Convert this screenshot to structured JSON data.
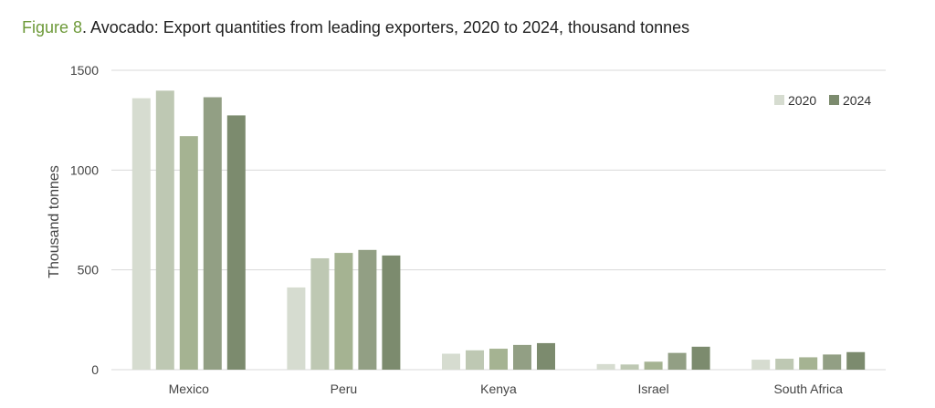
{
  "title": {
    "label": "Figure 8",
    "text": ". Avocado: Export quantities from leading exporters, 2020 to 2024, thousand tonnes"
  },
  "chart_data": {
    "type": "bar",
    "ylabel": "Thousand tonnes",
    "ylim": [
      0,
      1500
    ],
    "yticks": [
      0,
      500,
      1000,
      1500
    ],
    "grid": true,
    "legend_position": "top-right",
    "categories": [
      "Mexico",
      "Peru",
      "Kenya",
      "Israel",
      "South Africa"
    ],
    "series": [
      {
        "name": "2020",
        "color": "#d6dcd0",
        "values": [
          1360,
          412,
          80,
          28,
          50
        ]
      },
      {
        "color": "#bec8b3",
        "values": [
          1398,
          558,
          97,
          26,
          55
        ]
      },
      {
        "color": "#a5b392",
        "values": [
          1170,
          585,
          105,
          40,
          62
        ]
      },
      {
        "color": "#929f84",
        "values": [
          1365,
          600,
          124,
          84,
          76
        ]
      },
      {
        "name": "2024",
        "color": "#7c8b6e",
        "values": [
          1274,
          572,
          133,
          115,
          88
        ]
      }
    ]
  }
}
